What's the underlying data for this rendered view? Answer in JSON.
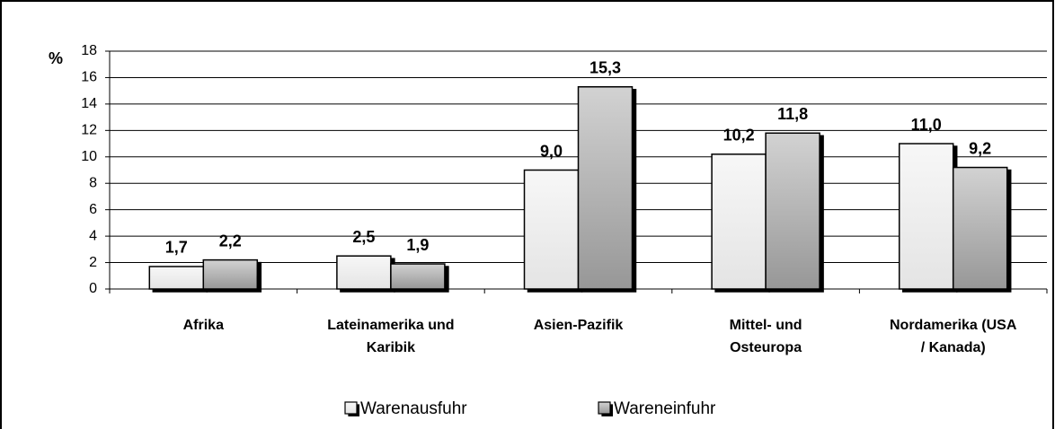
{
  "chart_data": {
    "type": "bar",
    "y_label": "%",
    "categories": [
      [
        "Afrika"
      ],
      [
        "Lateinamerika und",
        "Karibik"
      ],
      [
        "Asien-Pazifik"
      ],
      [
        "Mittel- und",
        "Osteuropa"
      ],
      [
        "Nordamerika (USA",
        "/ Kanada)"
      ]
    ],
    "series": [
      {
        "name": "Warenausfuhr",
        "color": "#efefef",
        "values": [
          1.7,
          2.5,
          9.0,
          10.2,
          11.0
        ],
        "value_labels": [
          "1,7",
          "2,5",
          "9,0",
          "10,2",
          "11,0"
        ]
      },
      {
        "name": "Wareneinfuhr",
        "color": "#b4b4b4",
        "values": [
          2.2,
          1.9,
          15.3,
          11.8,
          9.2
        ],
        "value_labels": [
          "2,2",
          "1,9",
          "15,3",
          "11,8",
          "9,2"
        ]
      }
    ],
    "ylim": [
      0,
      18
    ],
    "yticks": [
      0,
      2,
      4,
      6,
      8,
      10,
      12,
      14,
      16,
      18
    ],
    "grid": true,
    "legend": "bottom"
  }
}
